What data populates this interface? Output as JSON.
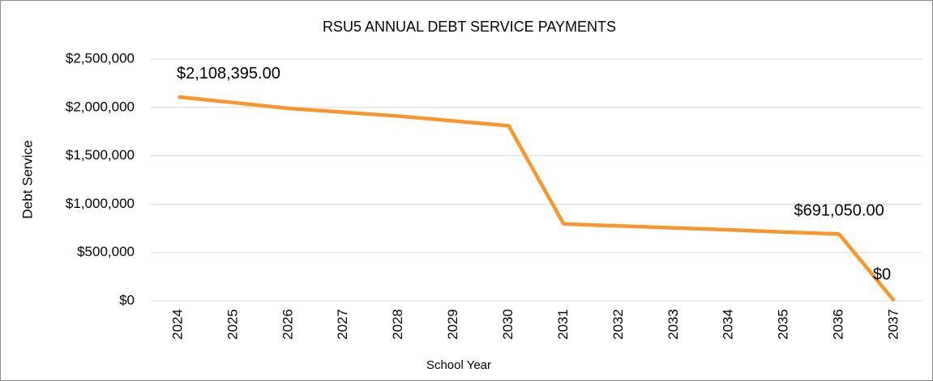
{
  "chart_data": {
    "type": "line",
    "title": "RSU5 ANNUAL DEBT SERVICE PAYMENTS",
    "x_label": "School Year",
    "y_label": "Debt Service",
    "categories": [
      "2024",
      "2025",
      "2026",
      "2027",
      "2028",
      "2029",
      "2030",
      "2031",
      "2032",
      "2033",
      "2034",
      "2035",
      "2036",
      "2037"
    ],
    "series": [
      {
        "name": "Debt Service",
        "color": "#f7962b",
        "values": [
          2108395,
          2050000,
          1990000,
          1950000,
          1910000,
          1860000,
          1810000,
          795000,
          775000,
          755000,
          735000,
          712000,
          691050,
          0
        ],
        "value_labels": [
          "$2,108,395.00",
          null,
          null,
          null,
          null,
          null,
          null,
          null,
          null,
          null,
          null,
          null,
          "$691,050.00",
          "$0"
        ]
      }
    ],
    "ylim": [
      0,
      2500000
    ],
    "yticks": [
      {
        "value": 0,
        "label": "$0"
      },
      {
        "value": 500000,
        "label": "$500,000"
      },
      {
        "value": 1000000,
        "label": "$1,000,000"
      },
      {
        "value": 1500000,
        "label": "$1,500,000"
      },
      {
        "value": 2000000,
        "label": "$2,000,000"
      },
      {
        "value": 2500000,
        "label": "$2,500,000"
      }
    ],
    "grid": true
  }
}
